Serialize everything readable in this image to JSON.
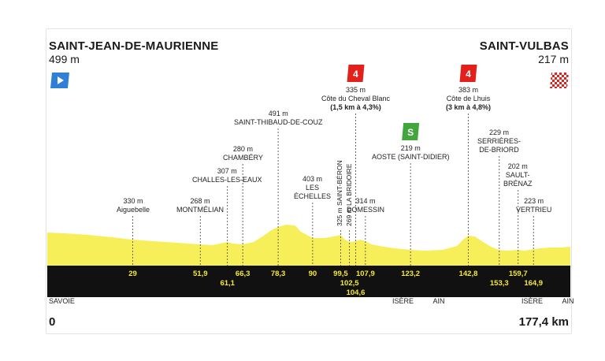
{
  "start": {
    "name": "SAINT-JEAN-DE-MAURIENNE",
    "altitude": "499 m",
    "distance": "0"
  },
  "finish": {
    "name": "SAINT-VULBAS",
    "altitude": "217 m",
    "distance": "177,4 km"
  },
  "colors": {
    "profile": "#f6ef5a",
    "band": "#111111",
    "km_text": "#f5e83a",
    "climb": "#e2201c",
    "sprint": "#41a63c",
    "start_flag": "#2f7fd6"
  },
  "waypoints": [
    {
      "id": "aiguebelle",
      "km": 29,
      "km_label": "29",
      "lines": [
        "330 m",
        "Aiguebelle"
      ]
    },
    {
      "id": "montmelian",
      "km": 51.9,
      "km_label": "51,9",
      "lines": [
        "268 m",
        "MONTMÉLIAN"
      ]
    },
    {
      "id": "challes",
      "km": 61.1,
      "km_label": "61,1",
      "lines": [
        "307 m",
        "CHALLES-LES-EAUX"
      ]
    },
    {
      "id": "chambery",
      "km": 66.3,
      "km_label": "66,3",
      "lines": [
        "280 m",
        "CHAMBÉRY"
      ]
    },
    {
      "id": "couz",
      "km": 78.3,
      "km_label": "78,3",
      "lines": [
        "491 m",
        "SAINT-THIBAUD-DE-COUZ"
      ]
    },
    {
      "id": "echelles",
      "km": 90,
      "km_label": "90",
      "lines": [
        "403 m",
        "LES",
        "ÉCHELLES"
      ]
    },
    {
      "id": "beron",
      "km": 99.5,
      "km_label": "99,5",
      "vertical": "325 m  SAINT-BÉRON"
    },
    {
      "id": "bridoire",
      "km": 102.5,
      "km_label": "102,5",
      "vertical": "269 m  LA BRIDOIRE"
    },
    {
      "id": "cheval-blanc",
      "km": 104.6,
      "km_label": "104,6",
      "lines": [
        "335 m",
        "Côte du Cheval Blanc",
        "(1,5 km à 4,3%)"
      ],
      "climb_cat": "4"
    },
    {
      "id": "domessin",
      "km": 107.9,
      "km_label": "107,9",
      "lines": [
        "314 m",
        "DOMESSIN"
      ]
    },
    {
      "id": "aoste",
      "km": 123.2,
      "km_label": "123,2",
      "lines": [
        "219 m",
        "AOSTE (SAINT-DIDIER)"
      ],
      "sprint": "S"
    },
    {
      "id": "lhuis",
      "km": 142.8,
      "km_label": "142,8",
      "lines": [
        "383 m",
        "Côte de Lhuis",
        "(3 km à 4,8%)"
      ],
      "climb_cat": "4"
    },
    {
      "id": "serrieres",
      "km": 153.3,
      "km_label": "153,3",
      "lines": [
        "229 m",
        "SERRIÈRES-",
        "DE-BRIORD"
      ]
    },
    {
      "id": "sault",
      "km": 159.7,
      "km_label": "159,7",
      "lines": [
        "202 m",
        "SAULT-",
        "BRÉNAZ"
      ]
    },
    {
      "id": "vertrieu",
      "km": 164.9,
      "km_label": "164,9",
      "lines": [
        "223 m",
        "VERTRIEU"
      ]
    }
  ],
  "regions": [
    {
      "id": "savoie",
      "lines": [
        "SAVOIE"
      ]
    },
    {
      "id": "isere-ain-1",
      "lines": [
        "ISÈRE",
        "AIN"
      ]
    },
    {
      "id": "isere-ain-2",
      "lines": [
        "ISÈRE",
        "AIN"
      ]
    }
  ]
}
